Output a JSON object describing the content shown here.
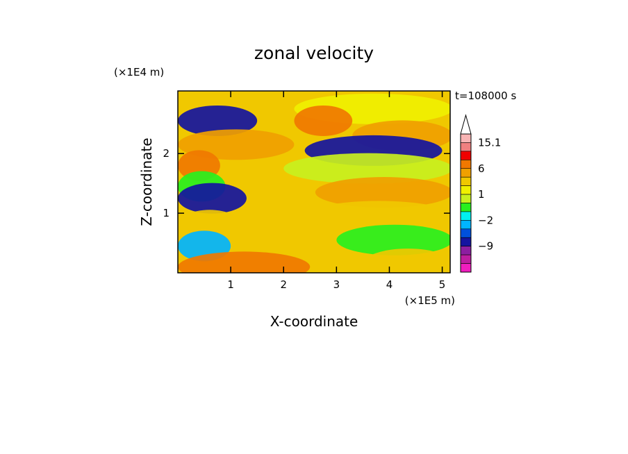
{
  "chart_data": {
    "type": "heatmap",
    "title": "zonal velocity",
    "xlabel": "X-coordinate",
    "ylabel": "Z-coordinate",
    "x_unit": "(×1E5 m)",
    "y_unit": "(×1E4 m)",
    "time_label": "t=108000 s",
    "xlim": [
      0,
      5.15
    ],
    "ylim": [
      0,
      3.05
    ],
    "x_ticks": [
      "1",
      "2",
      "3",
      "4",
      "5"
    ],
    "y_ticks": [
      "1",
      "2"
    ],
    "colorbar": {
      "levels": [
        -15,
        -12,
        -9,
        -6,
        -4,
        -2,
        -1,
        0,
        1,
        2,
        4,
        6,
        9,
        12,
        15.1
      ],
      "labels": [
        {
          "text": "15.1",
          "value": 15.1
        },
        {
          "text": "6",
          "value": 6
        },
        {
          "text": "1",
          "value": 1
        },
        {
          "text": "−2",
          "value": -2
        },
        {
          "text": "−9",
          "value": -9
        }
      ],
      "colors": [
        "#f01ebe",
        "#be1ea0",
        "#8c1ea0",
        "#1414a0",
        "#0050dc",
        "#00b4ff",
        "#00f0f0",
        "#28f01e",
        "#c8f01e",
        "#f0f000",
        "#f0c800",
        "#f0a000",
        "#f07800",
        "#f00000",
        "#f08080",
        "#f8b4b4"
      ]
    },
    "bands": [
      {
        "z": 2.85,
        "x0": 0.0,
        "x1": 1.0,
        "v": 2
      },
      {
        "z": 2.55,
        "x0": 0.0,
        "x1": 1.5,
        "v": -8
      },
      {
        "z": 2.15,
        "x0": 0.0,
        "x1": 2.2,
        "v": 4
      },
      {
        "z": 1.8,
        "x0": 0.0,
        "x1": 0.8,
        "v": 6
      },
      {
        "z": 1.45,
        "x0": 0.0,
        "x1": 0.9,
        "v": -1
      },
      {
        "z": 1.25,
        "x0": 0.0,
        "x1": 1.3,
        "v": -8
      },
      {
        "z": 0.8,
        "x0": 0.0,
        "x1": 1.2,
        "v": 3
      },
      {
        "z": 0.45,
        "x0": 0.0,
        "x1": 1.0,
        "v": -3
      },
      {
        "z": 0.1,
        "x0": 0.0,
        "x1": 2.5,
        "v": 7
      },
      {
        "z": 2.75,
        "x0": 2.2,
        "x1": 5.2,
        "v": 1
      },
      {
        "z": 2.55,
        "x0": 2.2,
        "x1": 3.3,
        "v": 7
      },
      {
        "z": 2.3,
        "x0": 3.3,
        "x1": 5.2,
        "v": 4
      },
      {
        "z": 2.05,
        "x0": 2.4,
        "x1": 5.0,
        "v": -8
      },
      {
        "z": 1.75,
        "x0": 2.0,
        "x1": 5.2,
        "v": 0
      },
      {
        "z": 1.35,
        "x0": 2.6,
        "x1": 5.2,
        "v": 5
      },
      {
        "z": 0.95,
        "x0": 2.4,
        "x1": 5.2,
        "v": 2
      },
      {
        "z": 0.55,
        "x0": 3.0,
        "x1": 5.2,
        "v": -1
      },
      {
        "z": 0.15,
        "x0": 3.5,
        "x1": 5.2,
        "v": 2
      }
    ]
  }
}
